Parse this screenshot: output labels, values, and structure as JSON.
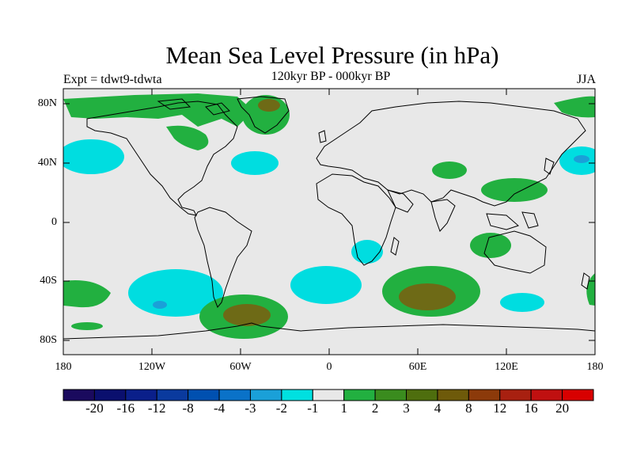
{
  "title": "Mean Sea Level Pressure (in hPa)",
  "experiment": "Expt = tdwt9-tdwta",
  "period": "120kyr BP - 000kyr BP",
  "season": "JJA",
  "lat_labels": [
    "80N",
    "40N",
    "0",
    "40S",
    "80S"
  ],
  "lon_labels": [
    "180",
    "120W",
    "60W",
    "0",
    "60E",
    "120E",
    "180"
  ],
  "colorbar": {
    "labels": [
      "-20",
      "-16",
      "-12",
      "-8",
      "-4",
      "-3",
      "-2",
      "-1",
      "1",
      "2",
      "3",
      "4",
      "8",
      "12",
      "16",
      "20"
    ],
    "colors": [
      "#1a0a5e",
      "#0a0f6e",
      "#0a1f8a",
      "#0a3a9e",
      "#0050b0",
      "#0a72c8",
      "#1aa0d8",
      "#00e0e0",
      "#e8e8e8",
      "#22b040",
      "#3a8c1e",
      "#4e6e0e",
      "#6e5a0a",
      "#8c3a0a",
      "#a82010",
      "#c01010",
      "#d80000"
    ]
  },
  "colors": {
    "ocean_bg": "#e8e8e8",
    "neg_light": "#00dde0",
    "neg_medium": "#1aa0d8",
    "pos_light": "#22b040",
    "pos_dark": "#6e6a16"
  }
}
